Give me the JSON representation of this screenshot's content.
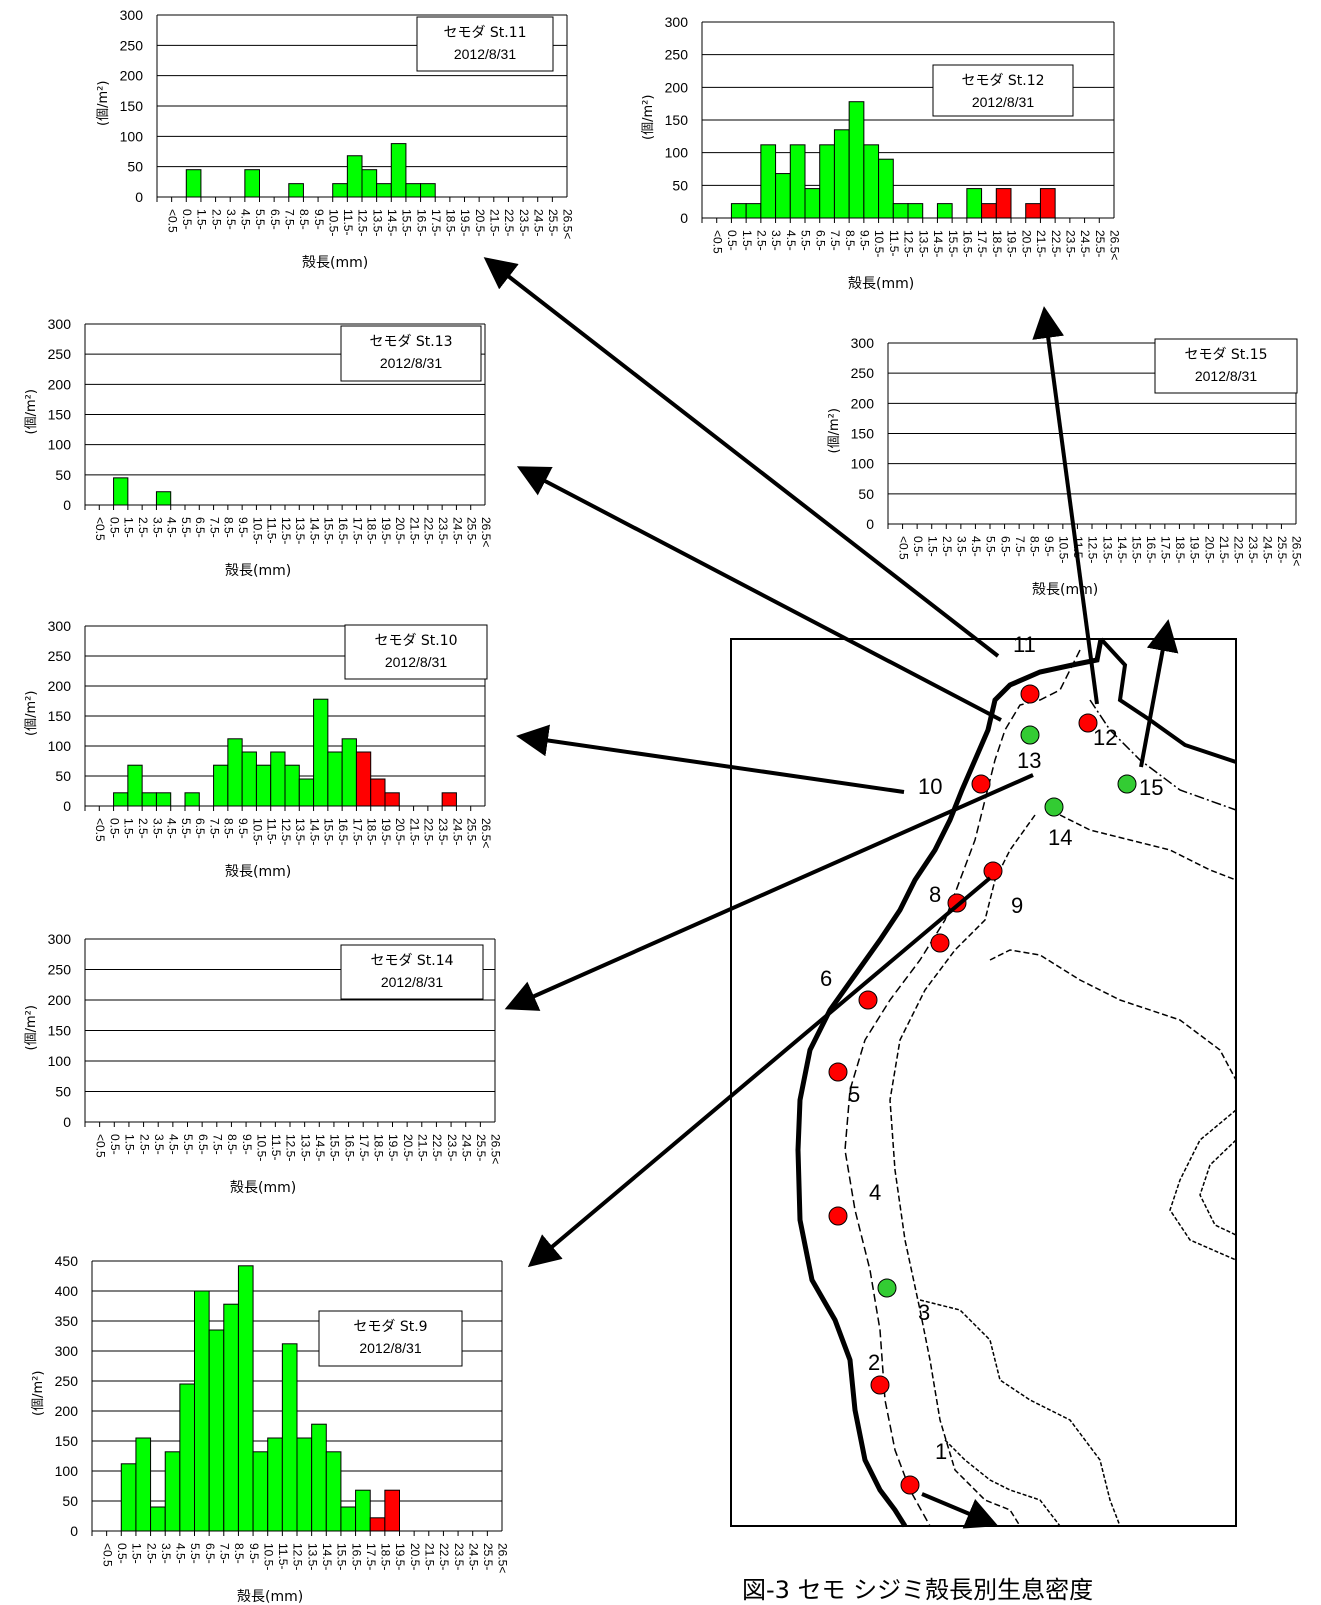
{
  "caption": "図-3 セモ シジミ殻長別生息密度",
  "bins": [
    "<0.5",
    "0.5-",
    "1.5-",
    "2.5-",
    "3.5-",
    "4.5-",
    "5.5-",
    "6.5-",
    "7.5-",
    "8.5-",
    "9.5-",
    "10.5-",
    "11.5-",
    "12.5-",
    "13.5-",
    "14.5-",
    "15.5-",
    "16.5-",
    "17.5-",
    "18.5-",
    "19.5-",
    "20.5-",
    "21.5-",
    "22.5-",
    "23.5-",
    "24.5-",
    "25.5-",
    "26.5<"
  ],
  "colors": {
    "small": "#00ff00",
    "large": "#ff0000",
    "green_marker": "#33cc33",
    "red_marker": "#ff0000"
  },
  "chart_data": [
    {
      "type": "bar",
      "station": "St.11",
      "legend_name": "セモダ St.11",
      "date": "2012/8/31",
      "xlabel": "殻長(mm)",
      "ylabel": "(個/m²)",
      "ylim": [
        0,
        300
      ],
      "yticks": [
        0,
        50,
        100,
        150,
        200,
        250,
        300
      ],
      "values": [
        0,
        0,
        45,
        0,
        0,
        0,
        45,
        0,
        0,
        22,
        0,
        0,
        22,
        68,
        45,
        22,
        88,
        22,
        22,
        0,
        0,
        0,
        0,
        0,
        0,
        0,
        0,
        0
      ],
      "large_values": [
        0,
        0,
        0,
        0,
        0,
        0,
        0,
        0,
        0,
        0,
        0,
        0,
        0,
        0,
        0,
        0,
        0,
        0,
        0,
        0,
        0,
        0,
        0,
        0,
        0,
        0,
        0,
        0
      ]
    },
    {
      "type": "bar",
      "station": "St.12",
      "legend_name": "セモダ St.12",
      "date": "2012/8/31",
      "xlabel": "殻長(mm)",
      "ylabel": "(個/m²)",
      "ylim": [
        0,
        300
      ],
      "yticks": [
        0,
        50,
        100,
        150,
        200,
        250,
        300
      ],
      "values": [
        0,
        0,
        22,
        22,
        112,
        68,
        112,
        45,
        112,
        135,
        178,
        112,
        90,
        22,
        22,
        0,
        22,
        0,
        45,
        0,
        0,
        0,
        0,
        0,
        0,
        0,
        0,
        0
      ],
      "large_values": [
        0,
        0,
        0,
        0,
        0,
        0,
        0,
        0,
        0,
        0,
        0,
        0,
        0,
        0,
        0,
        0,
        0,
        0,
        0,
        22,
        45,
        0,
        22,
        45,
        0,
        0,
        0,
        0
      ]
    },
    {
      "type": "bar",
      "station": "St.13",
      "legend_name": "セモダ St.13",
      "date": "2012/8/31",
      "xlabel": "殻長(mm)",
      "ylabel": "(個/m²)",
      "ylim": [
        0,
        300
      ],
      "yticks": [
        0,
        50,
        100,
        150,
        200,
        250,
        300
      ],
      "values": [
        0,
        0,
        45,
        0,
        0,
        22,
        0,
        0,
        0,
        0,
        0,
        0,
        0,
        0,
        0,
        0,
        0,
        0,
        0,
        0,
        0,
        0,
        0,
        0,
        0,
        0,
        0,
        0
      ],
      "large_values": [
        0,
        0,
        0,
        0,
        0,
        0,
        0,
        0,
        0,
        0,
        0,
        0,
        0,
        0,
        0,
        0,
        0,
        0,
        0,
        0,
        0,
        0,
        0,
        0,
        0,
        0,
        0,
        0
      ]
    },
    {
      "type": "bar",
      "station": "St.15",
      "legend_name": "セモダ St.15",
      "date": "2012/8/31",
      "xlabel": "殻長(mm)",
      "ylabel": "(個/m²)",
      "ylim": [
        0,
        300
      ],
      "yticks": [
        0,
        50,
        100,
        150,
        200,
        250,
        300
      ],
      "values": [
        0,
        0,
        0,
        0,
        0,
        0,
        0,
        0,
        0,
        0,
        0,
        0,
        0,
        0,
        0,
        0,
        0,
        0,
        0,
        0,
        0,
        0,
        0,
        0,
        0,
        0,
        0,
        0
      ],
      "large_values": [
        0,
        0,
        0,
        0,
        0,
        0,
        0,
        0,
        0,
        0,
        0,
        0,
        0,
        0,
        0,
        0,
        0,
        0,
        0,
        0,
        0,
        0,
        0,
        0,
        0,
        0,
        0,
        0
      ]
    },
    {
      "type": "bar",
      "station": "St.10",
      "legend_name": "セモダ St.10",
      "date": "2012/8/31",
      "xlabel": "殻長(mm)",
      "ylabel": "(個/m²)",
      "ylim": [
        0,
        300
      ],
      "yticks": [
        0,
        50,
        100,
        150,
        200,
        250,
        300
      ],
      "values": [
        0,
        0,
        22,
        68,
        22,
        22,
        0,
        22,
        0,
        68,
        112,
        90,
        68,
        90,
        68,
        45,
        178,
        90,
        112,
        0,
        0,
        0,
        0,
        0,
        0,
        0,
        0,
        0
      ],
      "large_values": [
        0,
        0,
        0,
        0,
        0,
        0,
        0,
        0,
        0,
        0,
        0,
        0,
        0,
        0,
        0,
        0,
        0,
        0,
        0,
        90,
        45,
        22,
        0,
        0,
        0,
        22,
        0,
        0
      ]
    },
    {
      "type": "bar",
      "station": "St.14",
      "legend_name": "セモダ St.14",
      "date": "2012/8/31",
      "xlabel": "殻長(mm)",
      "ylabel": "(個/m²)",
      "ylim": [
        0,
        300
      ],
      "yticks": [
        0,
        50,
        100,
        150,
        200,
        250,
        300
      ],
      "values": [
        0,
        0,
        0,
        0,
        0,
        0,
        0,
        0,
        0,
        0,
        0,
        0,
        0,
        0,
        0,
        0,
        0,
        0,
        0,
        0,
        0,
        0,
        0,
        0,
        0,
        0,
        0,
        0
      ],
      "large_values": [
        0,
        0,
        0,
        0,
        0,
        0,
        0,
        0,
        0,
        0,
        0,
        0,
        0,
        0,
        0,
        0,
        0,
        0,
        0,
        0,
        0,
        0,
        0,
        0,
        0,
        0,
        0,
        0
      ]
    },
    {
      "type": "bar",
      "station": "St.9",
      "legend_name": "セモダ St.9",
      "date": "2012/8/31",
      "xlabel": "殻長(mm)",
      "ylabel": "(個/m²)",
      "ylim": [
        0,
        450
      ],
      "yticks": [
        0,
        50,
        100,
        150,
        200,
        250,
        300,
        350,
        400,
        450
      ],
      "values": [
        0,
        0,
        112,
        155,
        40,
        132,
        245,
        400,
        335,
        378,
        442,
        132,
        155,
        312,
        155,
        178,
        132,
        40,
        68,
        0,
        0,
        0,
        0,
        0,
        0,
        0,
        0,
        0
      ],
      "large_values": [
        0,
        0,
        0,
        0,
        0,
        0,
        0,
        0,
        0,
        0,
        0,
        0,
        0,
        0,
        0,
        0,
        0,
        0,
        0,
        22,
        68,
        0,
        0,
        0,
        0,
        0,
        0,
        0
      ]
    }
  ],
  "map": {
    "station_labels": [
      "1",
      "2",
      "3",
      "4",
      "5",
      "6",
      "8",
      "9",
      "10",
      "11",
      "12",
      "13",
      "14",
      "15"
    ],
    "stations": [
      {
        "id": "1",
        "color": "red"
      },
      {
        "id": "2",
        "color": "red"
      },
      {
        "id": "3",
        "color": "green"
      },
      {
        "id": "4",
        "color": "red"
      },
      {
        "id": "5",
        "color": "red"
      },
      {
        "id": "6",
        "color": "red"
      },
      {
        "id": "7",
        "color": "red"
      },
      {
        "id": "8",
        "color": "red"
      },
      {
        "id": "9",
        "color": "red"
      },
      {
        "id": "10",
        "color": "red"
      },
      {
        "id": "11",
        "color": "red"
      },
      {
        "id": "12",
        "color": "red"
      },
      {
        "id": "13",
        "color": "green"
      },
      {
        "id": "14",
        "color": "green"
      },
      {
        "id": "15",
        "color": "green"
      }
    ]
  }
}
